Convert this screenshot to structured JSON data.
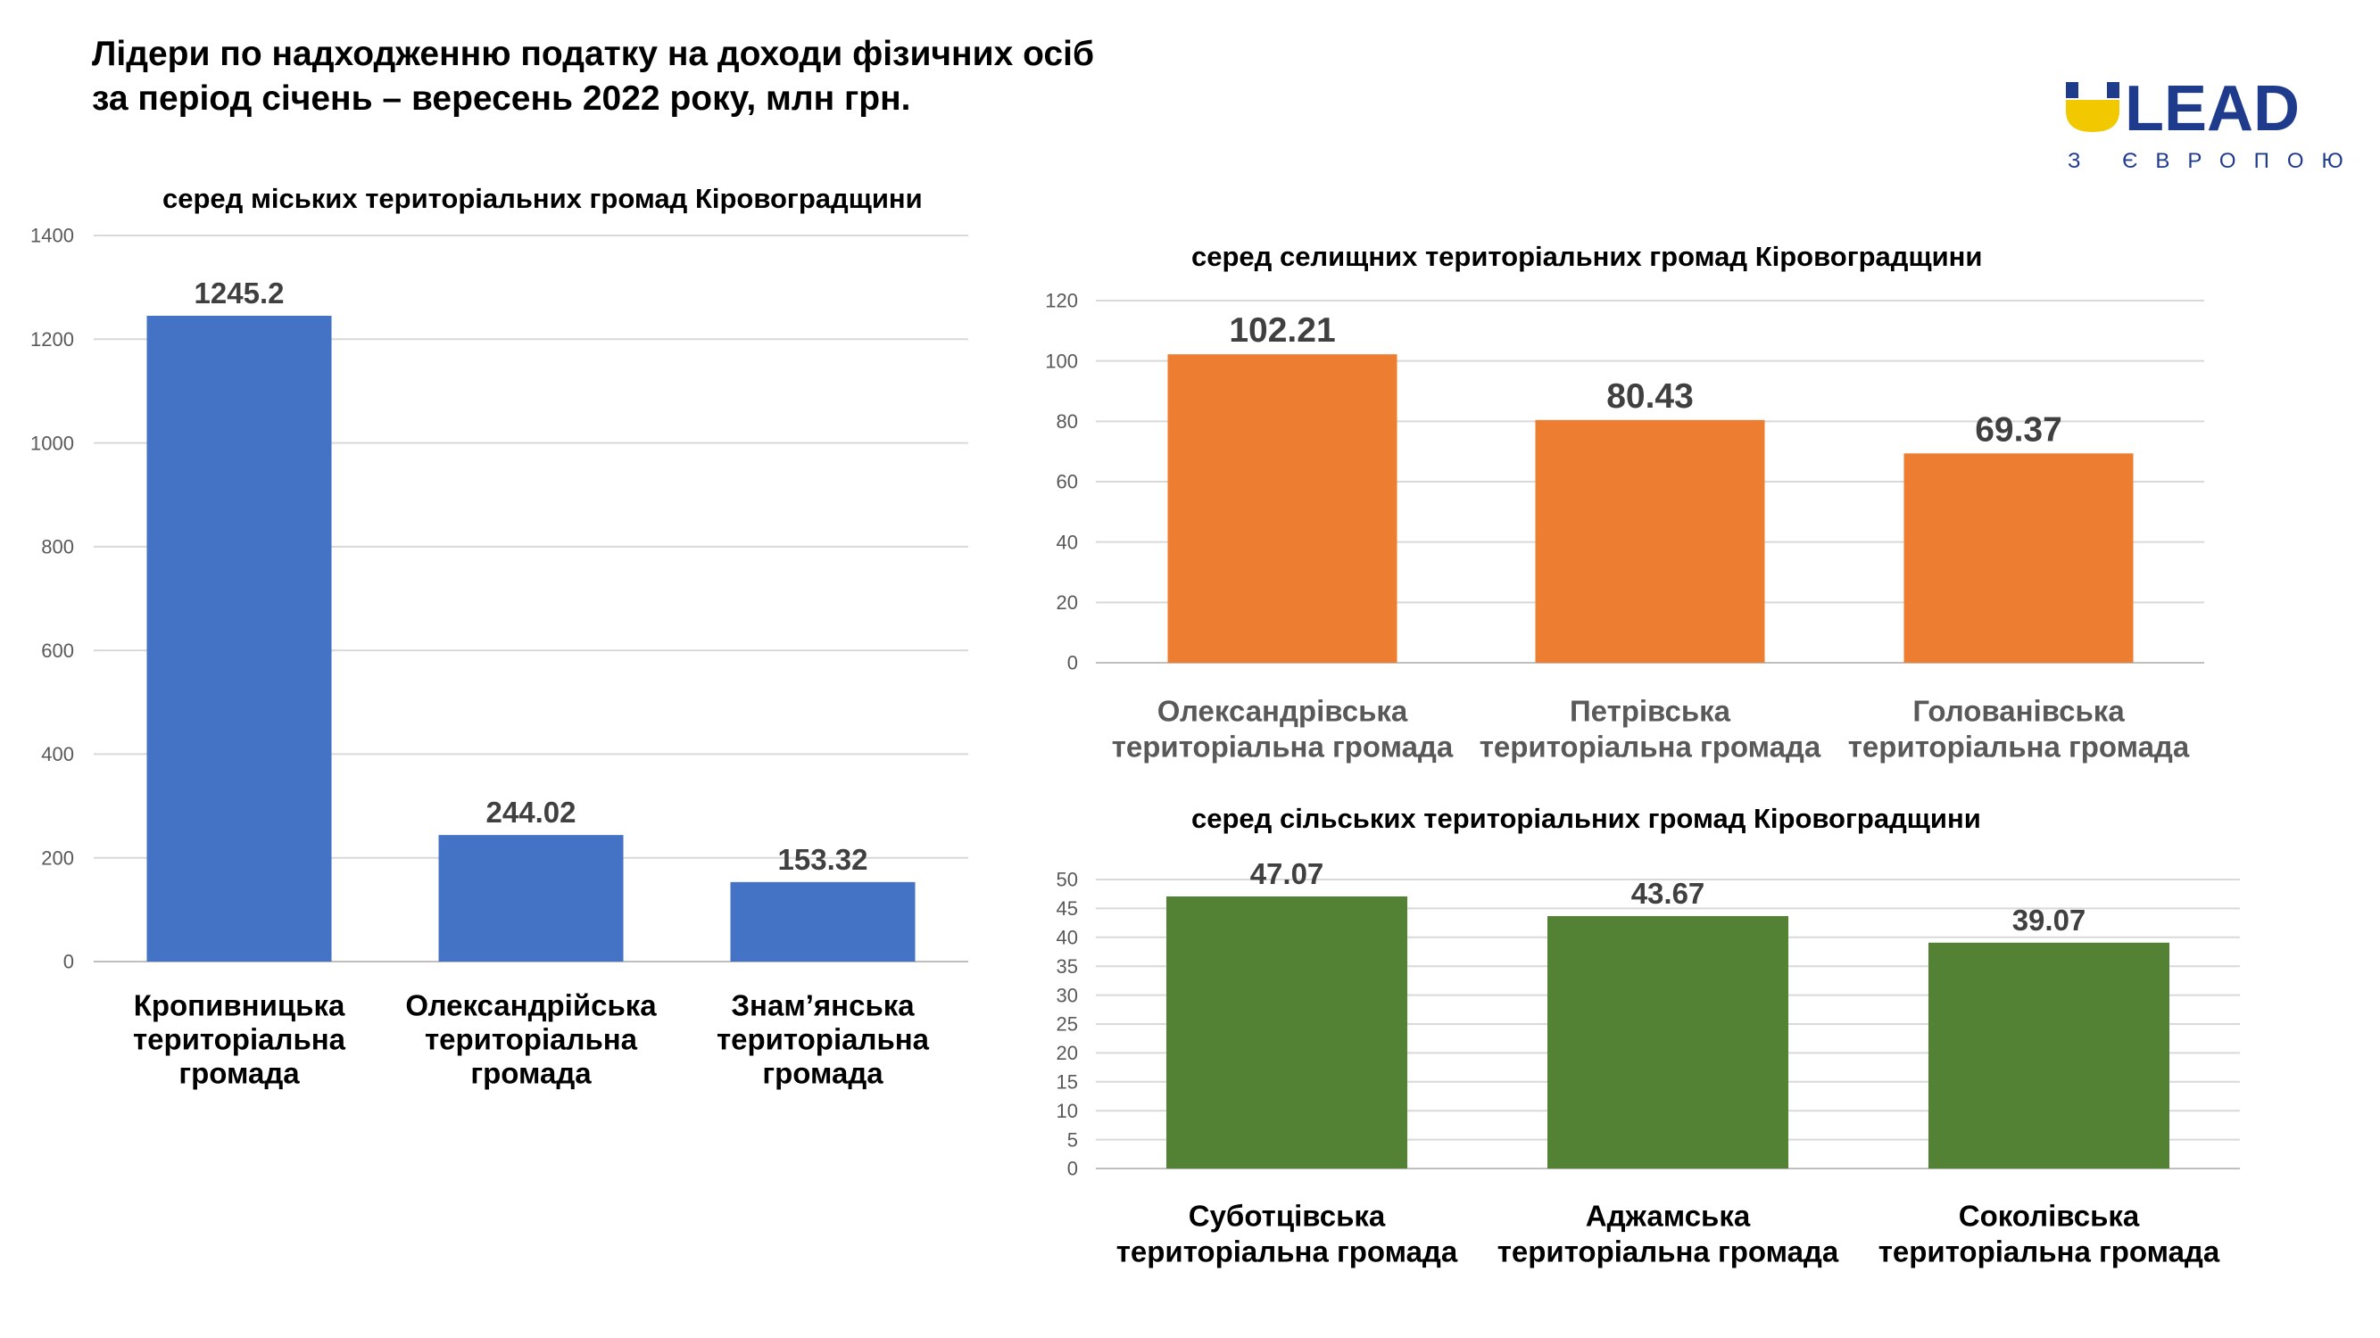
{
  "page": {
    "title_line1": "Лідери по надходженню податку на доходи фізичних осіб",
    "title_line2": "за період січень – вересень 2022 року, млн грн."
  },
  "logo": {
    "text": "LEAD",
    "subtitle": "З ЄВРОПОЮ",
    "colors": {
      "blue": "#1f3c8c",
      "yellow": "#f2c800",
      "text": "#1f3c8c"
    }
  },
  "chart_data": [
    {
      "type": "bar",
      "title": "серед міських територіальних громад Кіровоградщини",
      "categories": [
        [
          "Кропивницька",
          "територіальна",
          "громада"
        ],
        [
          "Олександрійська",
          "територіальна",
          "громада"
        ],
        [
          "Знам’янська",
          "територіальна",
          "громада"
        ]
      ],
      "values": [
        1245.2,
        244.02,
        153.32
      ],
      "data_labels": [
        "1245.2",
        "244.02",
        "153.32"
      ],
      "ylim": [
        0,
        1400
      ],
      "yticks": [
        0,
        200,
        400,
        600,
        800,
        1000,
        1200,
        1400
      ],
      "grid": true,
      "color": "#4472c4",
      "category_label_color": "#000000"
    },
    {
      "type": "bar",
      "title": "серед селищних територіальних громад Кіровоградщини",
      "categories": [
        [
          "Олександрівська",
          "територіальна громада"
        ],
        [
          "Петрівська",
          "територіальна громада"
        ],
        [
          "Голованівська",
          "територіальна громада"
        ]
      ],
      "values": [
        102.21,
        80.43,
        69.37
      ],
      "data_labels": [
        "102.21",
        "80.43",
        "69.37"
      ],
      "ylim": [
        0,
        120
      ],
      "yticks": [
        0,
        20,
        40,
        60,
        80,
        100,
        120
      ],
      "grid": true,
      "color": "#ed7d31",
      "category_label_color": "#595959"
    },
    {
      "type": "bar",
      "title": "серед сільських територіальних громад Кіровоградщини",
      "categories": [
        [
          "Суботцівська",
          "територіальна громада"
        ],
        [
          "Аджамська",
          "територіальна громада"
        ],
        [
          "Соколівська",
          "територіальна громада"
        ]
      ],
      "values": [
        47.07,
        43.67,
        39.07
      ],
      "data_labels": [
        "47.07",
        "43.67",
        "39.07"
      ],
      "ylim": [
        0,
        50
      ],
      "yticks": [
        0,
        5,
        10,
        15,
        20,
        25,
        30,
        35,
        40,
        45,
        50
      ],
      "grid": true,
      "color": "#548235",
      "category_label_color": "#000000"
    }
  ]
}
